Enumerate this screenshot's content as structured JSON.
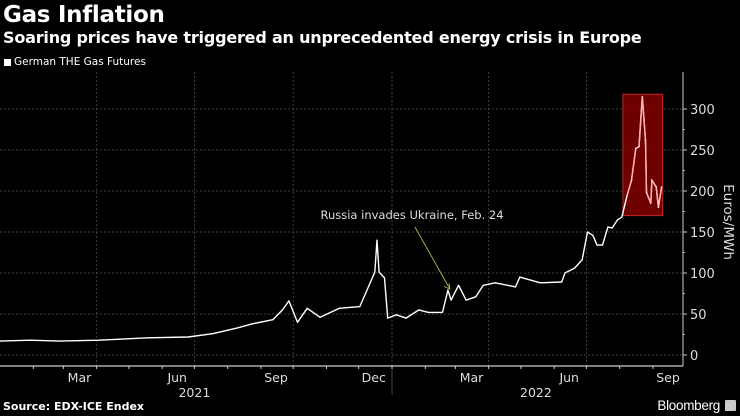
{
  "header": {
    "title": "Gas Inflation",
    "subtitle": "Soaring prices have triggered an unprecedented energy crisis in Europe"
  },
  "footer": {
    "source": "Source: EDX-ICE Endex",
    "brand": "Bloomberg"
  },
  "chart_data": {
    "type": "line",
    "title": "Gas Inflation",
    "subtitle": "Soaring prices have triggered an unprecedented energy crisis in Europe",
    "legend": {
      "placement": "top-left",
      "entries": [
        "German THE Gas Futures"
      ]
    },
    "ylabel": "Euros/MWh",
    "ylim": [
      -15,
      345
    ],
    "yticks": [
      "0",
      "50",
      "100",
      "150",
      "200",
      "250",
      "300"
    ],
    "xlim": [
      "2021-01-01",
      "2022-09-28"
    ],
    "xticks": [
      {
        "label": "Mar",
        "date": "2021-03-16"
      },
      {
        "label": "Jun",
        "date": "2021-06-15"
      },
      {
        "label": "Sep",
        "date": "2021-09-15"
      },
      {
        "label": "Dec",
        "date": "2021-12-15"
      },
      {
        "label": "Mar",
        "date": "2022-03-16"
      },
      {
        "label": "Jun",
        "date": "2022-06-15"
      },
      {
        "label": "Sep",
        "date": "2022-09-15"
      }
    ],
    "years": [
      {
        "label": "2021",
        "date": "2021-07-01"
      },
      {
        "label": "2022",
        "date": "2022-05-15"
      }
    ],
    "grid": true,
    "line_color": "#ffffff",
    "series": [
      {
        "name": "German THE Gas Futures",
        "points": [
          [
            "2021-01-01",
            17
          ],
          [
            "2021-01-29",
            18
          ],
          [
            "2021-02-25",
            17
          ],
          [
            "2021-04-03",
            18
          ],
          [
            "2021-05-19",
            21
          ],
          [
            "2021-06-25",
            22
          ],
          [
            "2021-07-18",
            26
          ],
          [
            "2021-08-10",
            33
          ],
          [
            "2021-08-24",
            38
          ],
          [
            "2021-09-12",
            43
          ],
          [
            "2021-09-21",
            55
          ],
          [
            "2021-09-27",
            66
          ],
          [
            "2021-10-05",
            40
          ],
          [
            "2021-10-14",
            57
          ],
          [
            "2021-10-26",
            46
          ],
          [
            "2021-11-13",
            57
          ],
          [
            "2021-12-02",
            59
          ],
          [
            "2021-12-10",
            83
          ],
          [
            "2021-12-16",
            101
          ],
          [
            "2021-12-18",
            140
          ],
          [
            "2021-12-20",
            101
          ],
          [
            "2021-12-25",
            94
          ],
          [
            "2021-12-28",
            45
          ],
          [
            "2022-01-05",
            49
          ],
          [
            "2022-01-14",
            45
          ],
          [
            "2022-01-26",
            55
          ],
          [
            "2022-02-04",
            52
          ],
          [
            "2022-02-17",
            52
          ],
          [
            "2022-02-22",
            79
          ],
          [
            "2022-02-25",
            67
          ],
          [
            "2022-03-04",
            85
          ],
          [
            "2022-03-11",
            67
          ],
          [
            "2022-03-20",
            71
          ],
          [
            "2022-03-27",
            85
          ],
          [
            "2022-04-07",
            88
          ],
          [
            "2022-04-26",
            83
          ],
          [
            "2022-04-30",
            95
          ],
          [
            "2022-05-19",
            88
          ],
          [
            "2022-06-08",
            89
          ],
          [
            "2022-06-11",
            100
          ],
          [
            "2022-06-20",
            106
          ],
          [
            "2022-06-27",
            116
          ],
          [
            "2022-07-02",
            150
          ],
          [
            "2022-07-07",
            146
          ],
          [
            "2022-07-11",
            134
          ],
          [
            "2022-07-16",
            134
          ],
          [
            "2022-07-21",
            156
          ],
          [
            "2022-07-25",
            155
          ],
          [
            "2022-07-30",
            165
          ],
          [
            "2022-08-03",
            168
          ],
          [
            "2022-08-08",
            195
          ],
          [
            "2022-08-12",
            213
          ],
          [
            "2022-08-16",
            252
          ],
          [
            "2022-08-19",
            254
          ],
          [
            "2022-08-22",
            315
          ],
          [
            "2022-08-25",
            262
          ],
          [
            "2022-08-26",
            198
          ],
          [
            "2022-08-30",
            185
          ],
          [
            "2022-08-31",
            213
          ],
          [
            "2022-09-04",
            205
          ],
          [
            "2022-09-06",
            180
          ],
          [
            "2022-09-09",
            205
          ]
        ]
      }
    ],
    "highlight": {
      "from": "2022-08-04",
      "to": "2022-09-10",
      "ymin": 170,
      "ymax": 318,
      "color": "#8b0000"
    },
    "annotations": [
      {
        "text": "Russia invades Ukraine, Feb. 24",
        "date": "2022-02-24",
        "value": 85,
        "color": "#8db34a"
      }
    ]
  }
}
